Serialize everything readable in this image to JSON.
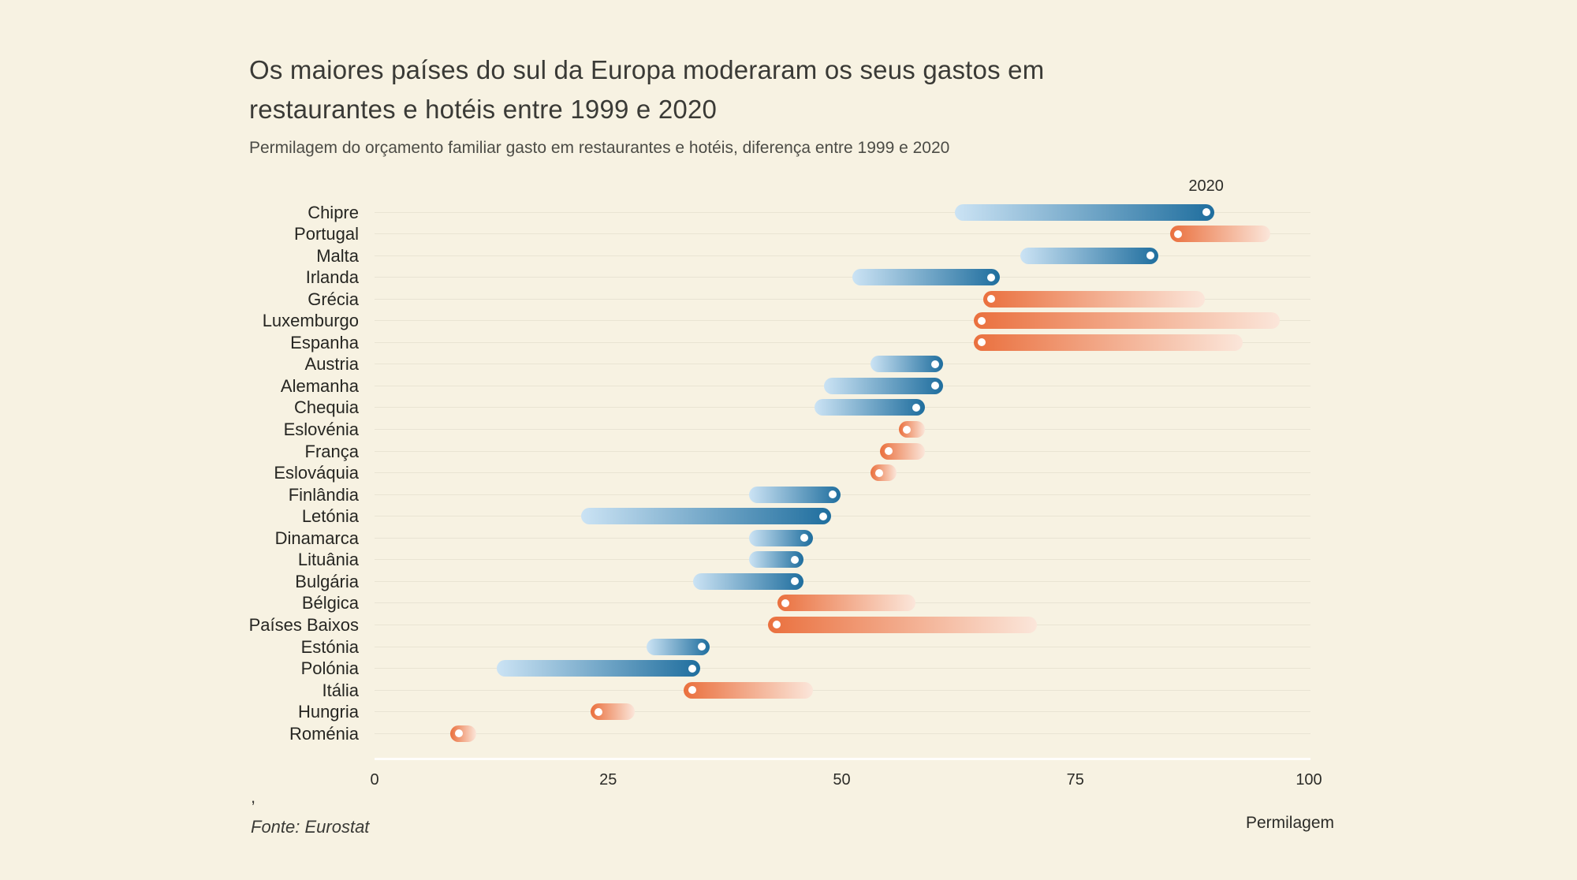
{
  "header": {
    "title": "Os maiores países do sul da Europa moderaram os seus gastos em restaurantes e hotéis entre 1999 e 2020",
    "subtitle": "Permilagem do orçamento familiar gasto em restaurantes e hotéis, diferença entre 1999 e 2020"
  },
  "annotation": {
    "label": "2020"
  },
  "axis": {
    "ticks": [
      "0",
      "25",
      "50",
      "75",
      "100"
    ],
    "tick_values": [
      0,
      25,
      50,
      75,
      100
    ],
    "label": "Permilagem",
    "min": 0,
    "max": 100
  },
  "footer": {
    "comma": ",",
    "source": "Fonte: Eurostat"
  },
  "colors": {
    "background": "#f7f2e2",
    "increase_head": "#1f6e9e",
    "increase_tail": "#cbe3f4",
    "decrease_head": "#ea703e",
    "decrease_tail": "#fbe6da",
    "dot": "#ffffff",
    "gridline": "#e9e4d3",
    "text": "#2c2c28"
  },
  "chart_data": {
    "type": "comet-dumbbell",
    "title": "Os maiores países do sul da Europa moderaram os seus gastos em restaurantes e hotéis entre 1999 e 2020",
    "subtitle": "Permilagem do orçamento familiar gasto em restaurantes e hotéis, diferença entre 1999 e 2020",
    "xlabel": "Permilagem",
    "xlim": [
      0,
      100
    ],
    "x_ticks": [
      0,
      25,
      50,
      75,
      100
    ],
    "grid": true,
    "series_years": [
      "1999",
      "2020"
    ],
    "head_year": "2020",
    "rows": [
      {
        "country": "Chipre",
        "v1999": 63,
        "v2020": 89
      },
      {
        "country": "Portugal",
        "v1999": 95,
        "v2020": 86
      },
      {
        "country": "Malta",
        "v1999": 70,
        "v2020": 83
      },
      {
        "country": "Irlanda",
        "v1999": 52,
        "v2020": 66
      },
      {
        "country": "Grécia",
        "v1999": 88,
        "v2020": 66
      },
      {
        "country": "Luxemburgo",
        "v1999": 96,
        "v2020": 65
      },
      {
        "country": "Espanha",
        "v1999": 92,
        "v2020": 65
      },
      {
        "country": "Austria",
        "v1999": 54,
        "v2020": 60
      },
      {
        "country": "Alemanha",
        "v1999": 49,
        "v2020": 60
      },
      {
        "country": "Chequia",
        "v1999": 48,
        "v2020": 58
      },
      {
        "country": "Eslovénia",
        "v1999": 58,
        "v2020": 57
      },
      {
        "country": "França",
        "v1999": 58,
        "v2020": 55
      },
      {
        "country": "Eslováquia",
        "v1999": 55,
        "v2020": 54
      },
      {
        "country": "Finlândia",
        "v1999": 41,
        "v2020": 49
      },
      {
        "country": "Letónia",
        "v1999": 23,
        "v2020": 48
      },
      {
        "country": "Dinamarca",
        "v1999": 41,
        "v2020": 46
      },
      {
        "country": "Lituânia",
        "v1999": 41,
        "v2020": 45
      },
      {
        "country": "Bulgária",
        "v1999": 35,
        "v2020": 45
      },
      {
        "country": "Bélgica",
        "v1999": 57,
        "v2020": 44
      },
      {
        "country": "Países Baixos",
        "v1999": 70,
        "v2020": 43
      },
      {
        "country": "Estónia",
        "v1999": 30,
        "v2020": 35
      },
      {
        "country": "Polónia",
        "v1999": 14,
        "v2020": 34
      },
      {
        "country": "Itália",
        "v1999": 46,
        "v2020": 34
      },
      {
        "country": "Hungria",
        "v1999": 27,
        "v2020": 24
      },
      {
        "country": "Roménia",
        "v1999": 10,
        "v2020": 9
      }
    ]
  }
}
